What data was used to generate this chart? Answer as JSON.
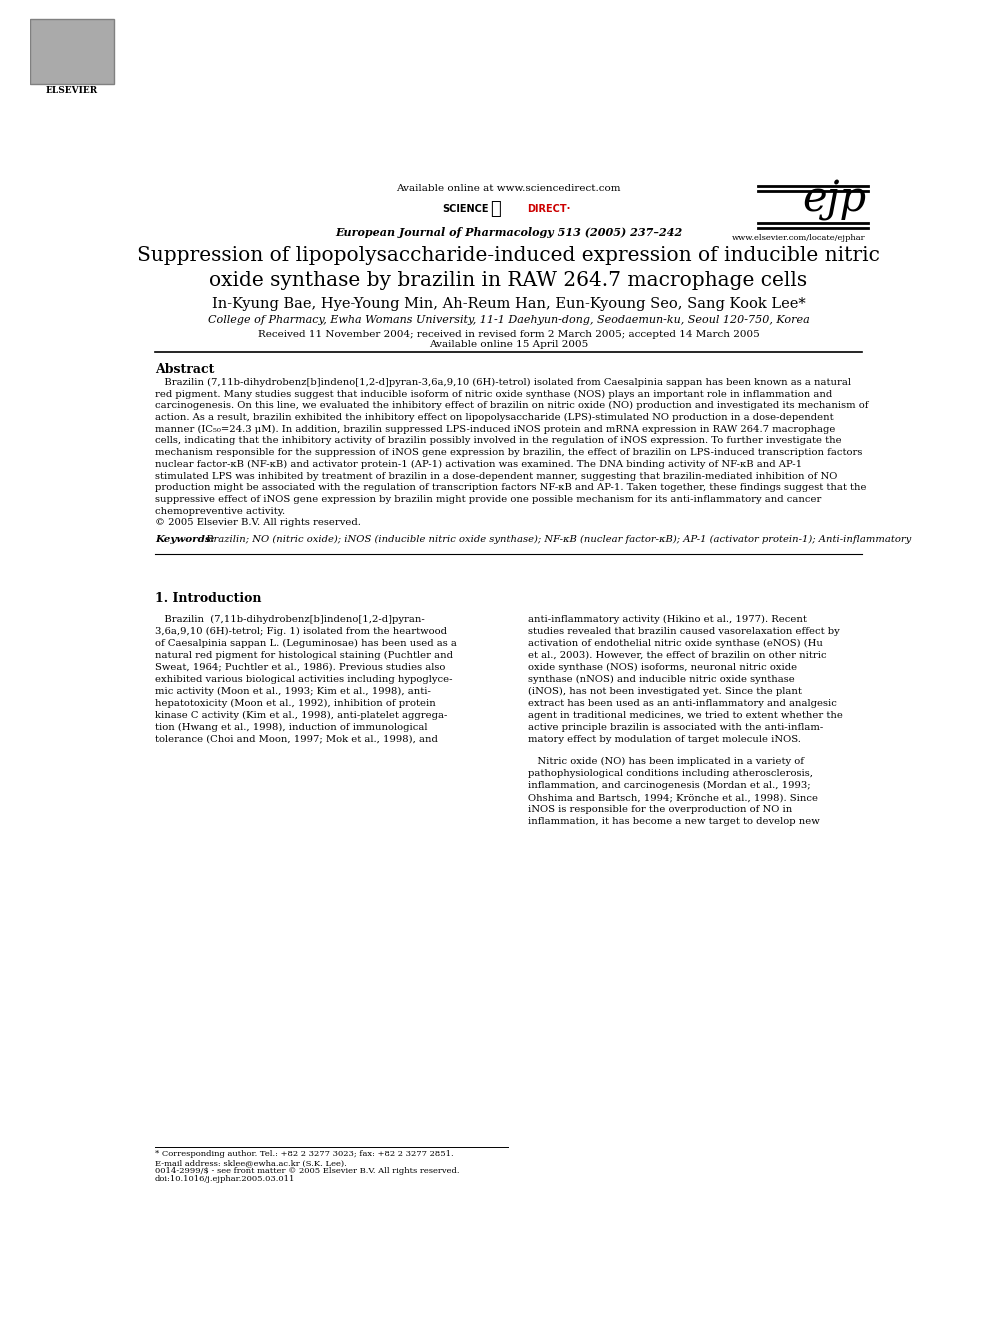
{
  "bg_color": "#ffffff",
  "page_width": 9.92,
  "page_height": 13.23,
  "header": {
    "available_online": "Available online at www.sciencedirect.com",
    "journal_name": "European Journal of Pharmacology 513 (2005) 237–242",
    "website": "www.elsevier.com/locate/ejphar"
  },
  "title": "Suppression of lipopolysaccharide-induced expression of inducible nitric\noxide synthase by brazilin in RAW 264.7 macrophage cells",
  "authors": "In-Kyung Bae, Hye-Young Min, Ah-Reum Han, Eun-Kyoung Seo, Sang Kook Lee*",
  "affiliation": "College of Pharmacy, Ewha Womans University, 11-1 Daehyun-dong, Seodaemun-ku, Seoul 120-750, Korea",
  "received": "Received 11 November 2004; received in revised form 2 March 2005; accepted 14 March 2005",
  "available": "Available online 15 April 2005",
  "abstract_title": "Abstract",
  "keywords_label": "Keywords:",
  "keywords_text": " Brazilin; NO (nitric oxide); iNOS (inducible nitric oxide synthase); NF-κB (nuclear factor-κB); AP-1 (activator protein-1); Anti-inflammatory",
  "section1_title": "1. Introduction",
  "footer_left_1": "* Corresponding author. Tel.: +82 2 3277 3023; fax: +82 2 3277 2851.",
  "footer_left_2": "E-mail address: sklee@ewha.ac.kr (S.K. Lee).",
  "footer_right_1": "0014-2999/$ - see front matter © 2005 Elsevier B.V. All rights reserved.",
  "footer_right_2": "doi:10.1016/j.ejphar.2005.03.011",
  "abstract_lines": [
    "   Brazilin (7,11b-dihydrobenz[b]indeno[1,2-d]pyran-3,6a,9,10 (6H)-tetrol) isolated from Caesalpinia sappan has been known as a natural",
    "red pigment. Many studies suggest that inducible isoform of nitric oxide synthase (NOS) plays an important role in inflammation and",
    "carcinogenesis. On this line, we evaluated the inhibitory effect of brazilin on nitric oxide (NO) production and investigated its mechanism of",
    "action. As a result, brazilin exhibited the inhibitory effect on lipopolysaccharide (LPS)-stimulated NO production in a dose-dependent",
    "manner (IC₅₀=24.3 μM). In addition, brazilin suppressed LPS-induced iNOS protein and mRNA expression in RAW 264.7 macrophage",
    "cells, indicating that the inhibitory activity of brazilin possibly involved in the regulation of iNOS expression. To further investigate the",
    "mechanism responsible for the suppression of iNOS gene expression by brazilin, the effect of brazilin on LPS-induced transcription factors",
    "nuclear factor-κB (NF-κB) and activator protein-1 (AP-1) activation was examined. The DNA binding activity of NF-κB and AP-1",
    "stimulated LPS was inhibited by treatment of brazilin in a dose-dependent manner, suggesting that brazilin-mediated inhibition of NO",
    "production might be associated with the regulation of transcription factors NF-κB and AP-1. Taken together, these findings suggest that the",
    "suppressive effect of iNOS gene expression by brazilin might provide one possible mechanism for its anti-inflammatory and cancer",
    "chemopreventive activity.",
    "© 2005 Elsevier B.V. All rights reserved."
  ],
  "col1_lines": [
    "   Brazilin  (7,11b-dihydrobenz[b]indeno[1,2-d]pyran-",
    "3,6a,9,10 (6H)-tetrol; Fig. 1) isolated from the heartwood",
    "of Caesalpinia sappan L. (Leguminosae) has been used as a",
    "natural red pigment for histological staining (Puchtler and",
    "Sweat, 1964; Puchtler et al., 1986). Previous studies also",
    "exhibited various biological activities including hypoglyce-",
    "mic activity (Moon et al., 1993; Kim et al., 1998), anti-",
    "hepatotoxicity (Moon et al., 1992), inhibition of protein",
    "kinase C activity (Kim et al., 1998), anti-platelet aggrega-",
    "tion (Hwang et al., 1998), induction of immunological",
    "tolerance (Choi and Moon, 1997; Mok et al., 1998), and"
  ],
  "col2_lines": [
    "anti-inflammatory activity (Hikino et al., 1977). Recent",
    "studies revealed that brazilin caused vasorelaxation effect by",
    "activation of endothelial nitric oxide synthase (eNOS) (Hu",
    "et al., 2003). However, the effect of brazilin on other nitric",
    "oxide synthase (NOS) isoforms, neuronal nitric oxide",
    "synthase (nNOS) and inducible nitric oxide synthase",
    "(iNOS), has not been investigated yet. Since the plant",
    "extract has been used as an anti-inflammatory and analgesic",
    "agent in traditional medicines, we tried to extent whether the",
    "active principle brazilin is associated with the anti-inflam-",
    "matory effect by modulation of target molecule iNOS."
  ],
  "col3_lines": [
    "   Nitric oxide (NO) has been implicated in a variety of",
    "pathophysiological conditions including atherosclerosis,",
    "inflammation, and carcinogenesis (Mordan et al., 1993;",
    "Ohshima and Bartsch, 1994; Krönche et al., 1998). Since",
    "iNOS is responsible for the overproduction of NO in",
    "inflammation, it has become a new target to develop new"
  ]
}
